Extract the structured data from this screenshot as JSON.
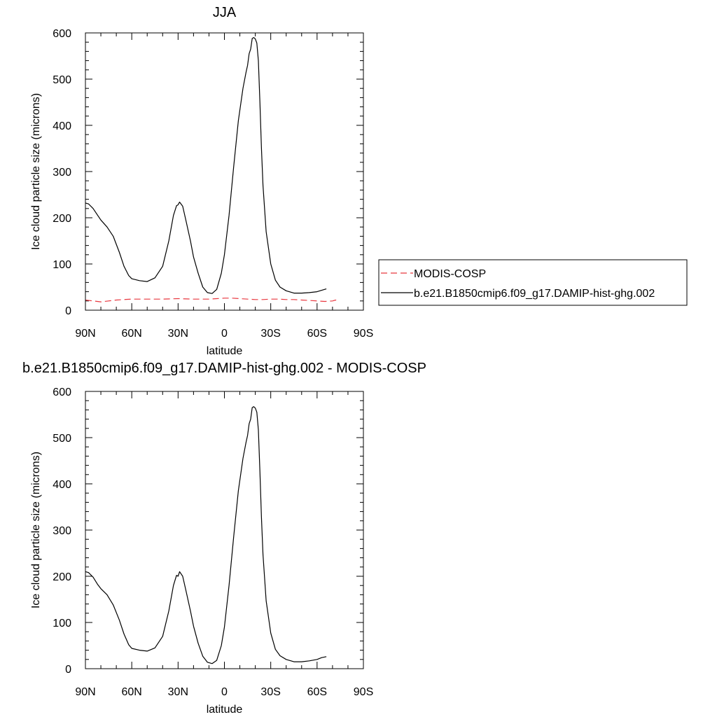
{
  "chart_data": [
    {
      "type": "line",
      "title": "JJA",
      "xlabel": "latitude",
      "ylabel": "Ice cloud particle size (microns)",
      "xlim": [
        -90,
        90
      ],
      "ylim": [
        0,
        600
      ],
      "xticks": [
        -90,
        -60,
        -30,
        0,
        30,
        60,
        90
      ],
      "xtick_labels": [
        "90N",
        "60N",
        "30N",
        "0",
        "30S",
        "60S",
        "90S"
      ],
      "yticks": [
        0,
        100,
        200,
        300,
        400,
        500,
        600
      ],
      "ytick_labels": [
        "0",
        "100",
        "200",
        "300",
        "400",
        "500",
        "600"
      ],
      "legend": {
        "placement": "outside-right",
        "entries": [
          "MODIS-COSP",
          "b.e21.B1850cmip6.f09_g17.DAMIP-hist-ghg.002"
        ]
      },
      "series": [
        {
          "name": "MODIS-COSP",
          "color": "#e8373f",
          "style": "dashed",
          "x": [
            -90,
            -85,
            -80,
            -75,
            -70,
            -65,
            -60,
            -50,
            -40,
            -30,
            -20,
            -10,
            -5,
            0,
            5,
            10,
            15,
            20,
            25,
            30,
            35,
            40,
            45,
            50,
            55,
            60,
            65,
            70,
            72,
            74
          ],
          "y": [
            22,
            20,
            18,
            20,
            22,
            23,
            24,
            24,
            24,
            25,
            24,
            24,
            25,
            26,
            26,
            25,
            24,
            23,
            23,
            24,
            24,
            23,
            23,
            22,
            21,
            20,
            19,
            20,
            22,
            19
          ]
        },
        {
          "name": "b.e21.B1850cmip6.f09_g17.DAMIP-hist-ghg.002",
          "color": "#000000",
          "style": "solid",
          "x": [
            -90,
            -88,
            -85,
            -82,
            -80,
            -76,
            -72,
            -68,
            -65,
            -62,
            -60,
            -55,
            -50,
            -45,
            -40,
            -36,
            -33,
            -31,
            -30,
            -29,
            -27,
            -25,
            -22,
            -20,
            -17,
            -14,
            -11,
            -8,
            -5,
            -2,
            0,
            3,
            6,
            9,
            12,
            14,
            15,
            16,
            17,
            18,
            19,
            20,
            21,
            22,
            23,
            24,
            25,
            27,
            30,
            33,
            36,
            40,
            45,
            50,
            55,
            60,
            63,
            66
          ],
          "y": [
            232,
            230,
            220,
            205,
            195,
            180,
            160,
            125,
            95,
            75,
            68,
            64,
            62,
            70,
            95,
            150,
            205,
            226,
            228,
            234,
            225,
            195,
            150,
            115,
            80,
            50,
            38,
            36,
            45,
            80,
            120,
            205,
            310,
            410,
            480,
            515,
            530,
            555,
            565,
            588,
            590,
            587,
            578,
            540,
            450,
            350,
            270,
            170,
            100,
            65,
            50,
            42,
            37,
            37,
            38,
            40,
            43,
            46
          ]
        }
      ]
    },
    {
      "type": "line",
      "title": "b.e21.B1850cmip6.f09_g17.DAMIP-hist-ghg.002 - MODIS-COSP",
      "xlabel": "latitude",
      "ylabel": "Ice cloud particle size (microns)",
      "xlim": [
        -90,
        90
      ],
      "ylim": [
        0,
        600
      ],
      "xticks": [
        -90,
        -60,
        -30,
        0,
        30,
        60,
        90
      ],
      "xtick_labels": [
        "90N",
        "60N",
        "30N",
        "0",
        "30S",
        "60S",
        "90S"
      ],
      "yticks": [
        0,
        100,
        200,
        300,
        400,
        500,
        600
      ],
      "ytick_labels": [
        "0",
        "100",
        "200",
        "300",
        "400",
        "500",
        "600"
      ],
      "series": [
        {
          "color": "#000000",
          "style": "solid",
          "x": [
            -90,
            -88,
            -85,
            -82,
            -80,
            -76,
            -72,
            -68,
            -65,
            -62,
            -60,
            -55,
            -50,
            -45,
            -40,
            -36,
            -33,
            -31,
            -30,
            -29,
            -27,
            -25,
            -22,
            -20,
            -17,
            -14,
            -11,
            -8,
            -5,
            -2,
            0,
            3,
            6,
            9,
            12,
            14,
            15,
            16,
            17,
            18,
            19,
            20,
            21,
            22,
            23,
            24,
            25,
            27,
            30,
            33,
            36,
            40,
            45,
            50,
            55,
            60,
            63,
            66
          ],
          "y": [
            210,
            208,
            198,
            182,
            173,
            160,
            138,
            105,
            75,
            52,
            44,
            40,
            38,
            45,
            70,
            125,
            180,
            202,
            200,
            210,
            200,
            170,
            125,
            92,
            55,
            27,
            14,
            11,
            18,
            50,
            90,
            180,
            285,
            385,
            455,
            490,
            505,
            530,
            540,
            565,
            567,
            564,
            555,
            517,
            427,
            327,
            247,
            147,
            77,
            42,
            28,
            20,
            15,
            15,
            17,
            20,
            24,
            26
          ]
        }
      ]
    }
  ]
}
